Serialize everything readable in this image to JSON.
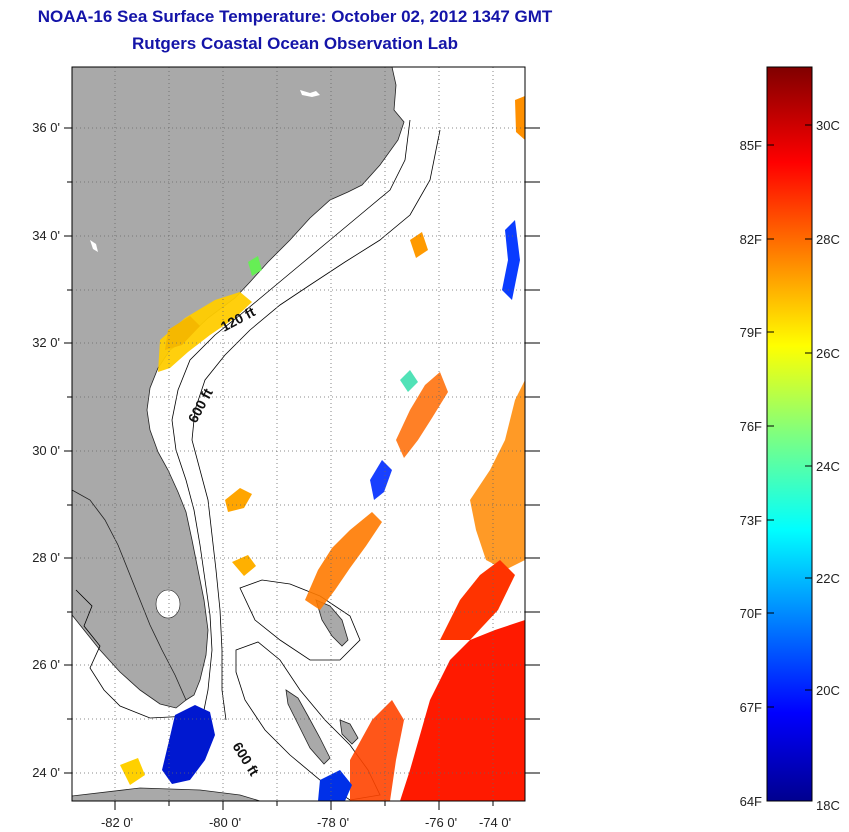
{
  "title": "NOAA-16 Sea Surface Temperature:  October 02, 2012 1347 GMT",
  "subtitle": "Rutgers Coastal Ocean Observation Lab",
  "map": {
    "lon_ticks": [
      "-82 0'",
      "-80 0'",
      "-78 0'",
      "-76 0'",
      "-74 0'"
    ],
    "lat_ticks": [
      "36 0'",
      "34 0'",
      "32 0'",
      "30 0'",
      "28 0'",
      "26 0'",
      "24 0'"
    ],
    "contour_labels": [
      "120 ft",
      "600 ft",
      "600 ft"
    ],
    "land_color": "#a9a9a9",
    "ocean_no_data_color": "#ffffff",
    "grid": "dotted"
  },
  "colorbar": {
    "fahrenheit_labels": [
      "85F",
      "82F",
      "79F",
      "76F",
      "73F",
      "70F",
      "67F",
      "64F"
    ],
    "celsius_labels": [
      "30C",
      "28C",
      "26C",
      "24C",
      "22C",
      "20C",
      "18C"
    ],
    "colormap": "jet"
  }
}
